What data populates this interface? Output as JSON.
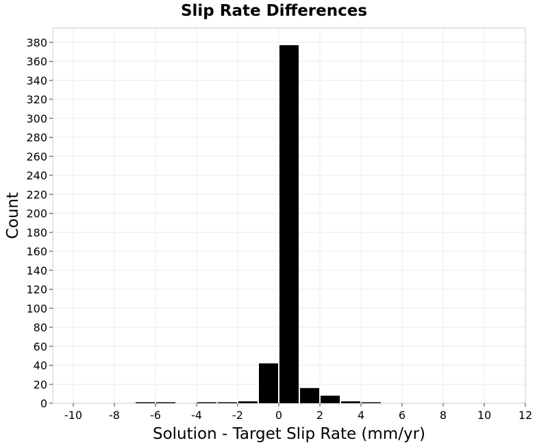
{
  "chart_data": {
    "type": "bar",
    "title": "Slip Rate Differences",
    "xlabel": "Solution - Target Slip Rate (mm/yr)",
    "ylabel": "Count",
    "xlim": [
      -11,
      12
    ],
    "ylim": [
      0,
      395
    ],
    "grid": true,
    "x_ticks": [
      -10,
      -8,
      -6,
      -4,
      -2,
      0,
      2,
      4,
      6,
      8,
      10,
      12
    ],
    "y_ticks": [
      0,
      20,
      40,
      60,
      80,
      100,
      120,
      140,
      160,
      180,
      200,
      220,
      240,
      260,
      280,
      300,
      320,
      340,
      360,
      380
    ],
    "bin_width": 1,
    "bins": [
      {
        "x": -6.5,
        "count": 1
      },
      {
        "x": -5.5,
        "count": 1
      },
      {
        "x": -3.5,
        "count": 1
      },
      {
        "x": -2.5,
        "count": 1
      },
      {
        "x": -1.5,
        "count": 2
      },
      {
        "x": -0.5,
        "count": 42
      },
      {
        "x": 0.5,
        "count": 377
      },
      {
        "x": 1.5,
        "count": 16
      },
      {
        "x": 2.5,
        "count": 8
      },
      {
        "x": 3.5,
        "count": 2
      },
      {
        "x": 4.5,
        "count": 1
      }
    ],
    "bar_color": "#000000",
    "grid_color": "#ebebeb",
    "frame_color": "#c8c8c8"
  }
}
